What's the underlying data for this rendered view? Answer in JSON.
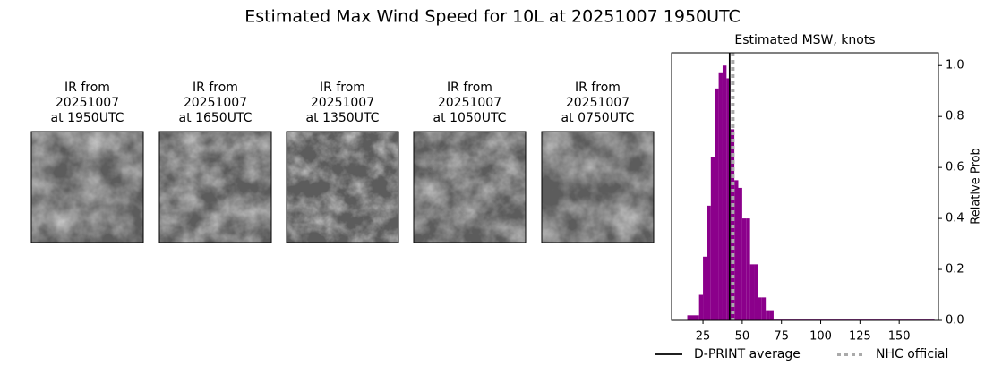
{
  "title": "Estimated Max Wind Speed for 10L at 20251007 1950UTC",
  "panels": [
    {
      "lines": [
        "IR from",
        "20251007",
        "at 1950UTC"
      ]
    },
    {
      "lines": [
        "IR from",
        "20251007",
        "at 1650UTC"
      ]
    },
    {
      "lines": [
        "IR from",
        "20251007",
        "at 1350UTC"
      ]
    },
    {
      "lines": [
        "IR from",
        "20251007",
        "at 1050UTC"
      ]
    },
    {
      "lines": [
        "IR from",
        "20251007",
        "at 0750UTC"
      ]
    }
  ],
  "chart_data": {
    "type": "histogram",
    "title": "Estimated MSW, knots",
    "y_label": "Relative Prob",
    "bins": [
      15,
      22.5,
      25,
      27.5,
      30,
      32.5,
      35,
      37.5,
      40,
      42.5,
      45,
      47.5,
      50,
      52.5,
      55,
      57.5,
      60,
      62.5,
      65,
      67.5,
      70,
      172.5
    ],
    "values": [
      0.02,
      0.1,
      0.25,
      0.45,
      0.64,
      0.91,
      0.97,
      1.0,
      0.95,
      0.75,
      0.55,
      0.52,
      0.4,
      0.4,
      0.22,
      0.22,
      0.09,
      0.09,
      0.04,
      0.04,
      0.003
    ],
    "color": "#8b008b",
    "xlim": [
      5,
      175
    ],
    "ylim": [
      0,
      1.05
    ],
    "xticks": [
      25,
      50,
      75,
      100,
      125,
      150
    ],
    "yticks": [
      {
        "value": 0,
        "label": "0.0"
      },
      {
        "value": 0.2,
        "label": "0.2"
      },
      {
        "value": 0.4,
        "label": "0.4"
      },
      {
        "value": 0.6,
        "label": "0.6"
      },
      {
        "value": 0.8,
        "label": "0.8"
      },
      {
        "value": 1.0,
        "label": "1.0"
      }
    ],
    "y_axis_side": "right",
    "legend": "below",
    "series": [
      {
        "name": "D-PRINT average",
        "x": 42,
        "color": "#000000",
        "style": "solid"
      },
      {
        "name": "NHC official",
        "x": 44,
        "color": "#aaaaaa",
        "style": "dotted"
      }
    ]
  }
}
